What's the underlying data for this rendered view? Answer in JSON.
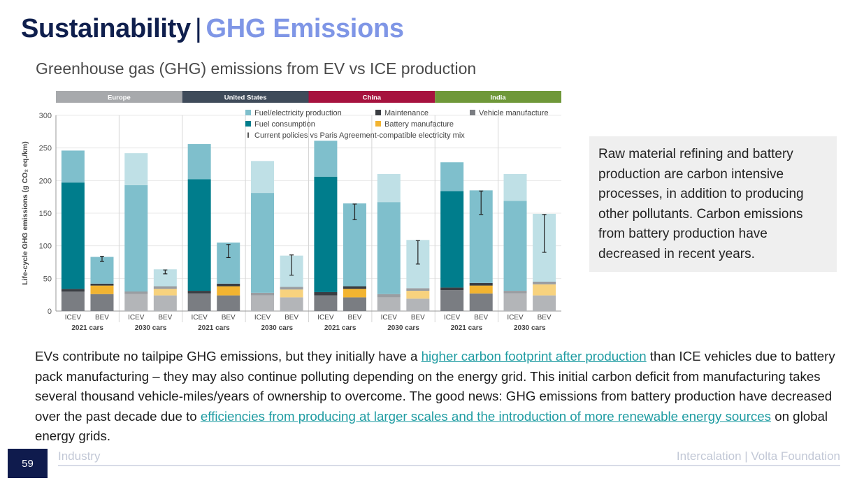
{
  "header": {
    "title_main": "Sustainability",
    "title_separator": "|",
    "title_accent": "GHG Emissions",
    "subtitle": "Greenhouse gas (GHG) emissions from EV vs ICE production"
  },
  "callout": {
    "text": "Raw material refining and battery production are carbon intensive processes, in addition to producing other pollutants. Carbon emissions from battery production have decreased in recent years."
  },
  "body": {
    "part1": "EVs contribute no tailpipe GHG emissions, but they initially have a ",
    "link1": "higher carbon footprint after production",
    "part2": " than ICE vehicles due to battery pack manufacturing – they may also continue polluting depending on the energy grid. This initial carbon deficit from manufacturing takes several thousand vehicle-miles/years of ownership to overcome. The good news: GHG emissions from battery production have decreased over the past decade due to ",
    "link2": "efficiencies from producing at larger scales and the introduction of more renewable energy sources",
    "part3": " on global energy grids."
  },
  "footer": {
    "page_number": "59",
    "section": "Industry",
    "source": "Intercalation | Volta Foundation"
  },
  "colors": {
    "title_navy": "#0f1f4d",
    "title_accent": "#7f96e6",
    "link": "#1f9ca2",
    "vehicle_manufacture": "#7a7d82",
    "battery_manufacture": "#f2b431",
    "maintenance": "#3a3d42",
    "fuel_consumption": "#007d8c",
    "fuel_electricity_production": "#7fbfcc"
  },
  "chart_data": {
    "type": "bar",
    "stacked": true,
    "ylabel": "Life-cycle GHG emissions (g CO₂ eq./km)",
    "ylim": [
      0,
      300
    ],
    "yticks": [
      0,
      50,
      100,
      150,
      200,
      250,
      300
    ],
    "regions": [
      {
        "name": "Europe",
        "color": "#a7a9ac"
      },
      {
        "name": "United States",
        "color": "#3f4b5a"
      },
      {
        "name": "China",
        "color": "#a6123e"
      },
      {
        "name": "India",
        "color": "#6f9839"
      }
    ],
    "groups": [
      "2021 cars",
      "2030 cars"
    ],
    "categories": [
      "ICEV",
      "BEV"
    ],
    "legend": [
      {
        "key": "fuel_electricity_production",
        "label": "Fuel/electricity production"
      },
      {
        "key": "maintenance",
        "label": "Maintenance"
      },
      {
        "key": "vehicle_manufacture",
        "label": "Vehicle manufacture"
      },
      {
        "key": "fuel_consumption",
        "label": "Fuel consumption"
      },
      {
        "key": "battery_manufacture",
        "label": "Battery manufacture"
      },
      {
        "key": "range",
        "label": "Current policies vs Paris Agreement-compatible electricity mix"
      }
    ],
    "series_order": [
      "vehicle_manufacture",
      "battery_manufacture",
      "maintenance",
      "fuel_consumption",
      "fuel_electricity_production"
    ],
    "bars": [
      {
        "region": "Europe",
        "group": "2021 cars",
        "category": "ICEV",
        "vehicle_manufacture": 30,
        "battery_manufacture": 0,
        "maintenance": 4,
        "fuel_consumption": 163,
        "fuel_electricity_production": 49
      },
      {
        "region": "Europe",
        "group": "2021 cars",
        "category": "BEV",
        "vehicle_manufacture": 26,
        "battery_manufacture": 13,
        "maintenance": 3,
        "fuel_consumption": 0,
        "fuel_electricity_production": 41,
        "range": [
          76,
          84
        ]
      },
      {
        "region": "Europe",
        "group": "2030 cars",
        "category": "ICEV",
        "vehicle_manufacture": 26,
        "battery_manufacture": 0,
        "maintenance": 4,
        "fuel_consumption": 0,
        "fuel_electricity_production": 163,
        "light": 49
      },
      {
        "region": "Europe",
        "group": "2030 cars",
        "category": "BEV",
        "vehicle_manufacture": 24,
        "battery_manufacture": 10,
        "maintenance": 4,
        "fuel_consumption": 0,
        "fuel_electricity_production": 0,
        "light": 26,
        "range": [
          57,
          63
        ]
      },
      {
        "region": "United States",
        "group": "2021 cars",
        "category": "ICEV",
        "vehicle_manufacture": 27,
        "battery_manufacture": 0,
        "maintenance": 4,
        "fuel_consumption": 171,
        "fuel_electricity_production": 54
      },
      {
        "region": "United States",
        "group": "2021 cars",
        "category": "BEV",
        "vehicle_manufacture": 24,
        "battery_manufacture": 14,
        "maintenance": 4,
        "fuel_consumption": 0,
        "fuel_electricity_production": 63,
        "range": [
          82,
          102
        ]
      },
      {
        "region": "United States",
        "group": "2030 cars",
        "category": "ICEV",
        "vehicle_manufacture": 24,
        "battery_manufacture": 0,
        "maintenance": 4,
        "fuel_consumption": 0,
        "fuel_electricity_production": 153,
        "light": 49
      },
      {
        "region": "United States",
        "group": "2030 cars",
        "category": "BEV",
        "vehicle_manufacture": 21,
        "battery_manufacture": 12,
        "maintenance": 4,
        "fuel_consumption": 0,
        "fuel_electricity_production": 0,
        "light": 48,
        "range": [
          55,
          86
        ]
      },
      {
        "region": "China",
        "group": "2021 cars",
        "category": "ICEV",
        "vehicle_manufacture": 24,
        "battery_manufacture": 0,
        "maintenance": 5,
        "fuel_consumption": 177,
        "fuel_electricity_production": 55
      },
      {
        "region": "China",
        "group": "2021 cars",
        "category": "BEV",
        "vehicle_manufacture": 21,
        "battery_manufacture": 13,
        "maintenance": 4,
        "fuel_consumption": 0,
        "fuel_electricity_production": 127,
        "range": [
          140,
          164
        ]
      },
      {
        "region": "China",
        "group": "2030 cars",
        "category": "ICEV",
        "vehicle_manufacture": 21,
        "battery_manufacture": 0,
        "maintenance": 5,
        "fuel_consumption": 0,
        "fuel_electricity_production": 141,
        "light": 43
      },
      {
        "region": "China",
        "group": "2030 cars",
        "category": "BEV",
        "vehicle_manufacture": 19,
        "battery_manufacture": 12,
        "maintenance": 4,
        "fuel_consumption": 0,
        "fuel_electricity_production": 0,
        "light": 74,
        "range": [
          72,
          108
        ]
      },
      {
        "region": "India",
        "group": "2021 cars",
        "category": "ICEV",
        "vehicle_manufacture": 32,
        "battery_manufacture": 0,
        "maintenance": 4,
        "fuel_consumption": 148,
        "fuel_electricity_production": 44
      },
      {
        "region": "India",
        "group": "2021 cars",
        "category": "BEV",
        "vehicle_manufacture": 27,
        "battery_manufacture": 12,
        "maintenance": 4,
        "fuel_consumption": 0,
        "fuel_electricity_production": 142,
        "range": [
          148,
          184
        ]
      },
      {
        "region": "India",
        "group": "2030 cars",
        "category": "ICEV",
        "vehicle_manufacture": 27,
        "battery_manufacture": 0,
        "maintenance": 4,
        "fuel_consumption": 0,
        "fuel_electricity_production": 138,
        "light": 41
      },
      {
        "region": "India",
        "group": "2030 cars",
        "category": "BEV",
        "vehicle_manufacture": 24,
        "battery_manufacture": 17,
        "maintenance": 4,
        "fuel_consumption": 0,
        "fuel_electricity_production": 0,
        "light": 104,
        "range": [
          90,
          148
        ]
      }
    ]
  }
}
